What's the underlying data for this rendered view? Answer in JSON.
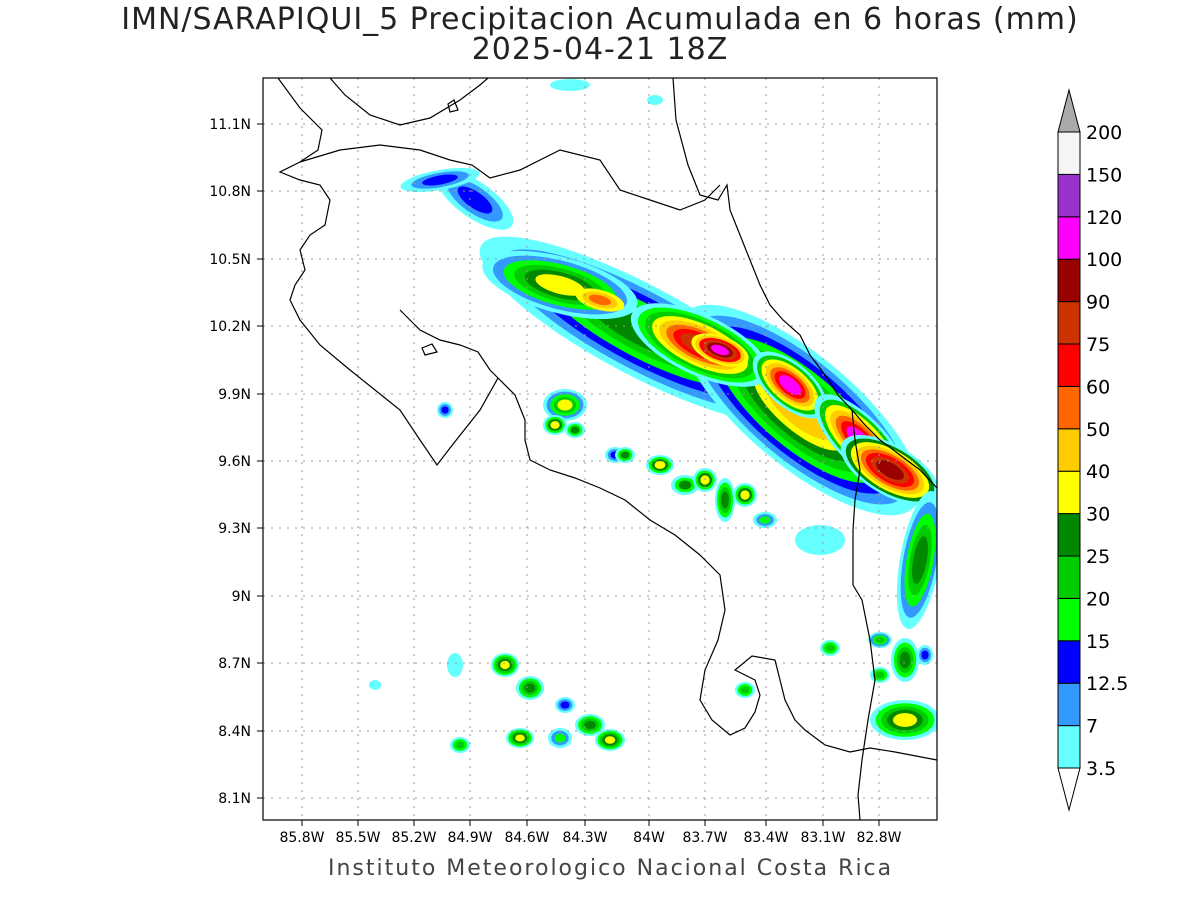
{
  "header": {
    "title": "IMN/SARAPIQUI_5 Precipitacion Acumulada en 6 horas (mm)",
    "subtitle": "2025-04-21 18Z"
  },
  "map": {
    "lat_ticks": [
      "11.1N",
      "10.8N",
      "10.5N",
      "10.2N",
      "9.9N",
      "9.6N",
      "9.3N",
      "9N",
      "8.7N",
      "8.4N",
      "8.1N"
    ],
    "lon_ticks": [
      "85.8W",
      "85.5W",
      "85.2W",
      "84.9W",
      "84.6W",
      "84.3W",
      "84W",
      "83.7W",
      "83.4W",
      "83.1W",
      "82.8W"
    ],
    "grid": true
  },
  "colorbar": {
    "labels": [
      "3.5",
      "7",
      "12.5",
      "15",
      "20",
      "25",
      "30",
      "40",
      "50",
      "60",
      "75",
      "90",
      "100",
      "120",
      "150",
      "200"
    ],
    "colors": [
      "#66ffff",
      "#3399ff",
      "#0000ff",
      "#00ff00",
      "#00cc00",
      "#008800",
      "#ffff00",
      "#ffcc00",
      "#ff6600",
      "#ff0000",
      "#cc3300",
      "#990000",
      "#ff00ff",
      "#9933cc",
      "#f5f5f5",
      "#aaaaaa"
    ],
    "bounds": [
      3.5,
      7,
      12.5,
      15,
      20,
      25,
      30,
      40,
      50,
      60,
      75,
      90,
      100,
      120,
      150,
      200
    ]
  },
  "footer": {
    "text": "Instituto Meteorologico Nacional Costa Rica"
  }
}
